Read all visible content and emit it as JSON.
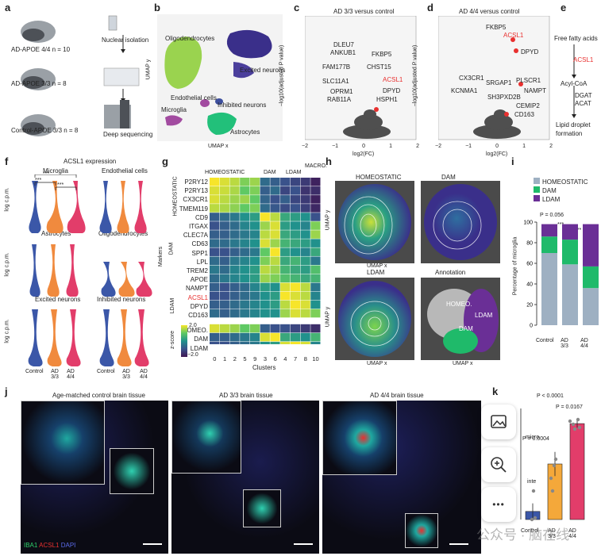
{
  "panels": {
    "a": {
      "letter": "a",
      "groups": [
        "AD-APOE 4/4 n = 10",
        "AD-APOE 3/3 n = 8",
        "Control-APOE 3/3 n = 8"
      ],
      "steps": [
        "Nuclear isolation",
        "Deep sequencing"
      ]
    },
    "b": {
      "letter": "b",
      "xlabel": "UMAP x",
      "ylabel": "UMAP y",
      "clusters": [
        "Oligodendrocytes",
        "Excited neurons",
        "Endothelial cells",
        "Inhibited neurons",
        "Microglia",
        "Astrocytes"
      ]
    },
    "c": {
      "letter": "c",
      "title": "AD 3/3 versus control",
      "xlabel": "log2(FC)",
      "ylabel": "−log10(adjusted P value)",
      "genes": [
        "DLEU7",
        "ANKUB1",
        "FAM177B",
        "SLC11A1",
        "OPRM1",
        "RAB11A",
        "FKBP5",
        "CHST15",
        "ACSL1",
        "DPYD",
        "HSPH1"
      ],
      "xticks": [
        "−2",
        "−1",
        "0",
        "1",
        "2"
      ]
    },
    "d": {
      "letter": "d",
      "title": "AD 4/4 versus control",
      "xlabel": "log2(FC)",
      "ylabel": "−log10(adjusted P value)",
      "genes": [
        "FKBP5",
        "ACSL1",
        "DPYD",
        "CX3CR1",
        "SRGAP1",
        "PLSCR1",
        "KCNMA1",
        "NAMPT",
        "SH3PXD2B",
        "CEMIP2",
        "CD163"
      ],
      "xticks": [
        "−2",
        "−1",
        "0",
        "1",
        "2"
      ]
    },
    "e": {
      "letter": "e",
      "steps": [
        "Free fatty acids",
        "ACSL1",
        "Acyl-CoA",
        "DGAT",
        "ACAT",
        "Lipid droplet formation"
      ]
    },
    "f": {
      "letter": "f",
      "title": "ACSL1 expression",
      "ylabel": "log c.p.m.",
      "cells": [
        "Microglia",
        "Endothelial cells",
        "Astrocytes",
        "Oligodendrocytes",
        "Excited neurons",
        "Inhibited neurons"
      ],
      "groups": [
        "Control",
        "AD 3/3",
        "AD 4/4"
      ],
      "stars": [
        "***",
        "***",
        "***"
      ]
    },
    "g": {
      "letter": "g",
      "col_groups": [
        "HOMEOSTATIC",
        "DAM",
        "LDAM",
        "MACRO."
      ],
      "row_groups": [
        "HOMEOSTATIC",
        "DAM",
        "LDAM"
      ],
      "axis_label": "Markers",
      "rows": [
        "P2RY12",
        "P2RY13",
        "CX3CR1",
        "TMEM119",
        "CD9",
        "ITGAX",
        "CLEC7A",
        "CD63",
        "SPP1",
        "LPL",
        "TREM2",
        "APOE",
        "NAMPT",
        "ACSL1",
        "DPYD",
        "CD163"
      ],
      "score_rows": [
        "HOMEO.",
        "DAM",
        "LDAM"
      ],
      "clusters": [
        "0",
        "1",
        "2",
        "5",
        "9",
        "3",
        "6",
        "4",
        "7",
        "8",
        "10"
      ],
      "xlabel": "Clusters",
      "colorbar": {
        "label": "z-score",
        "max": "2.0",
        "min": "−2.0"
      }
    },
    "h": {
      "letter": "h",
      "titles": [
        "HOMEOSTATIC",
        "DAM",
        "LDAM",
        "Annotation"
      ],
      "xlabel": "UMAP x",
      "ylabel": "UMAP y",
      "annot": [
        "HOMEO.",
        "LDAM",
        "DAM"
      ]
    },
    "i": {
      "letter": "i",
      "ylabel": "Percentage of microglia",
      "legend": [
        "HOMEOSTATIC",
        "DAM",
        "LDAM"
      ],
      "pvals": [
        "P = 0.056",
        "***",
        "***"
      ],
      "groups": [
        "Control",
        "AD 3/3",
        "AD 4/4"
      ],
      "yticks": [
        "0",
        "20",
        "40",
        "60",
        "80",
        "100"
      ]
    },
    "j": {
      "letter": "j",
      "titles": [
        "Age-matched control brain tissue",
        "AD 3/3 brain tissue",
        "AD 4/4 brain tissue"
      ],
      "stain": [
        "IBA1",
        "ACSL1",
        "DAPI"
      ]
    },
    "k": {
      "letter": "k",
      "pvals": [
        "P < 0.0001",
        "P = 0.0167",
        "P = 0.0004"
      ],
      "groups": [
        "Control",
        "AD 3/3",
        "AD 4/4"
      ],
      "ylabel_frag": [
        "micro",
        "inte"
      ]
    }
  },
  "chart_data": [
    {
      "type": "bar",
      "panel": "i",
      "categories": [
        "Control",
        "AD 3/3",
        "AD 4/4"
      ],
      "series": [
        {
          "name": "HOMEOSTATIC",
          "values": [
            70,
            59,
            36
          ]
        },
        {
          "name": "DAM",
          "values": [
            16,
            24,
            21
          ]
        },
        {
          "name": "LDAM",
          "values": [
            12,
            15,
            41
          ]
        }
      ],
      "ylim": [
        0,
        100
      ],
      "ylabel": "Percentage of microglia"
    },
    {
      "type": "bar",
      "panel": "k",
      "categories": [
        "Control",
        "AD 3/3",
        "AD 4/4"
      ],
      "values": [
        8,
        55,
        95
      ],
      "errors": [
        8,
        12,
        4
      ],
      "ylim": [
        0,
        110
      ]
    },
    {
      "type": "heatmap",
      "panel": "g",
      "values": [
        [
          2,
          1.8,
          1.6,
          1.2,
          1.4,
          -0.6,
          -0.8,
          -1,
          -1.2,
          -1.4,
          -1.8
        ],
        [
          1.8,
          1.7,
          1.5,
          1,
          1.2,
          -0.8,
          -0.6,
          -1.2,
          -1,
          -1.5,
          -1.6
        ],
        [
          1.8,
          1.6,
          1.4,
          1.4,
          1,
          -0.7,
          -1,
          -0.8,
          -1.2,
          -1.4,
          -1.8
        ],
        [
          1.6,
          1.5,
          1.3,
          1,
          1.2,
          -0.6,
          -0.9,
          -1.1,
          -1,
          -1.3,
          -1.7
        ],
        [
          -0.8,
          -0.6,
          -0.4,
          0,
          0.2,
          2,
          1.6,
          0.4,
          0.2,
          0,
          -1
        ],
        [
          -1,
          -0.8,
          -0.6,
          -0.2,
          0,
          1.4,
          1.8,
          0.2,
          0,
          -0.2,
          1.2
        ],
        [
          -0.8,
          -0.8,
          -0.6,
          -0.4,
          -0.2,
          1.6,
          1.8,
          0.4,
          0.2,
          0,
          1.4
        ],
        [
          -0.6,
          -0.6,
          -0.4,
          -0.2,
          0,
          1.8,
          1.4,
          0.6,
          0.4,
          0.2,
          0
        ],
        [
          -1,
          -1,
          -0.8,
          -0.6,
          -0.4,
          1,
          2,
          0.2,
          0,
          -0.2,
          0.4
        ],
        [
          -0.6,
          -0.8,
          -0.4,
          -0.2,
          0,
          1.2,
          1.6,
          0.4,
          0.6,
          0.2,
          -0.4
        ],
        [
          -0.4,
          -0.6,
          -0.2,
          0,
          0.2,
          1.6,
          1.4,
          0.6,
          0.4,
          0.2,
          0.8
        ],
        [
          -0.6,
          -0.4,
          -0.2,
          0,
          0.2,
          1.4,
          1.2,
          0.8,
          0.6,
          0.4,
          0.6
        ],
        [
          -0.8,
          -1,
          -0.8,
          -0.6,
          -0.2,
          0.2,
          0,
          1.8,
          2,
          1.6,
          -0.4
        ],
        [
          -1,
          -1,
          -0.8,
          -0.6,
          -0.4,
          0,
          0.2,
          2,
          1.8,
          1.6,
          -0.2
        ],
        [
          -0.8,
          -0.8,
          -0.6,
          -0.4,
          -0.2,
          0,
          0.2,
          1.6,
          2,
          1.8,
          0
        ],
        [
          -0.6,
          -0.8,
          -0.6,
          -0.4,
          -0.2,
          0,
          0,
          1.4,
          1.8,
          1.6,
          1.2
        ],
        [
          1.8,
          1.6,
          1.4,
          1,
          1.2,
          -0.8,
          -1,
          -1,
          -1.2,
          -1.4,
          -1.6
        ],
        [
          -0.8,
          -0.8,
          -0.6,
          -0.4,
          -0.2,
          1.8,
          2,
          0.4,
          0.2,
          0,
          0.6
        ],
        [
          -1,
          -1,
          -0.8,
          -0.6,
          -0.4,
          0,
          0.2,
          1.8,
          2,
          1.8,
          -0.2
        ]
      ]
    }
  ],
  "ui": {
    "watermark": "公众号 · 脑在线",
    "buttons": [
      {
        "name": "image-icon"
      },
      {
        "name": "zoom-in-icon"
      },
      {
        "name": "more-icon",
        "label": "•••"
      }
    ]
  }
}
